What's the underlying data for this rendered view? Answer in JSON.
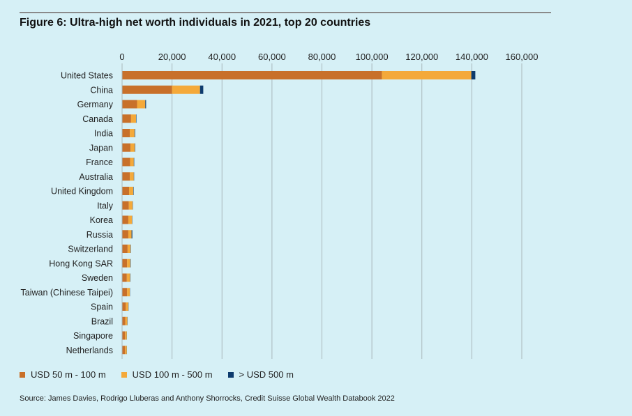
{
  "title": "Figure 6: Ultra-high net worth individuals in 2021, top 20 countries",
  "source": "Source: James Davies, Rodrigo Lluberas and Anthony Shorrocks, Credit Suisse Global Wealth Databook 2022",
  "chart_data": {
    "type": "bar",
    "orientation": "horizontal",
    "stacked": true,
    "title": "Figure 6: Ultra-high net worth individuals in 2021, top 20 countries",
    "xlim": [
      0,
      160000
    ],
    "x_ticks": [
      0,
      20000,
      40000,
      60000,
      80000,
      100000,
      120000,
      140000,
      160000
    ],
    "x_tick_labels": [
      "0",
      "20,000",
      "40,000",
      "60,000",
      "80,000",
      "100,000",
      "120,000",
      "140,000",
      "160,000"
    ],
    "x_axis_position": "top",
    "grid": true,
    "legend_placement": "bottom-left",
    "categories": [
      "United States",
      "China",
      "Germany",
      "Canada",
      "India",
      "Japan",
      "France",
      "Australia",
      "United Kingdom",
      "Italy",
      "Korea",
      "Russia",
      "Switzerland",
      "Hong Kong SAR",
      "Sweden",
      "Taiwan (Chinese Taipei)",
      "Spain",
      "Brazil",
      "Singapore",
      "Netherlands"
    ],
    "series": [
      {
        "name": "USD 50 m - 100 m",
        "color": "#c8702a",
        "values": [
          104000,
          20000,
          6000,
          3600,
          3100,
          3400,
          3200,
          3100,
          2800,
          2700,
          2500,
          2500,
          2200,
          2000,
          1900,
          2000,
          1500,
          1300,
          1200,
          1200
        ]
      },
      {
        "name": "USD 100 m - 500 m",
        "color": "#f4a93a",
        "values": [
          35800,
          11200,
          3300,
          2000,
          1900,
          1700,
          1500,
          1600,
          1700,
          1500,
          1500,
          1300,
          1200,
          1300,
          1300,
          1100,
          1000,
          800,
          700,
          700
        ]
      },
      {
        "name": "> USD 500 m",
        "color": "#0d3b6e",
        "values": [
          1600,
          1300,
          300,
          150,
          200,
          150,
          150,
          120,
          150,
          100,
          100,
          300,
          120,
          150,
          120,
          80,
          80,
          80,
          50,
          50
        ]
      }
    ]
  }
}
